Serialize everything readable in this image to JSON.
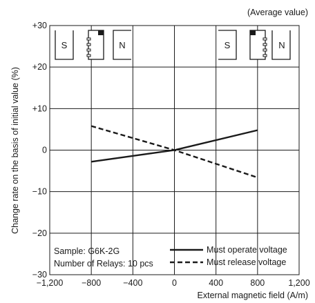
{
  "chart_data": {
    "type": "line",
    "title": "",
    "note_top": "(Average value)",
    "xlabel": "External magnetic field (A/m)",
    "ylabel": "Change rate on the basis of initial value (%)",
    "xlim": [
      -1200,
      1200
    ],
    "ylim": [
      -30,
      30
    ],
    "x_ticks": [
      -1200,
      -800,
      -400,
      0,
      400,
      800,
      1200
    ],
    "x_tick_labels": [
      "−1,200",
      "−800",
      "−400",
      "0",
      "400",
      "800",
      "1,200"
    ],
    "y_ticks": [
      -30,
      -20,
      -10,
      0,
      10,
      20,
      30
    ],
    "y_tick_labels": [
      "−30",
      "−20",
      "−10",
      "0",
      "+10",
      "+20",
      "+30"
    ],
    "grid": true,
    "legend_position": "bottom-right",
    "series": [
      {
        "name": "Must operate voltage",
        "style": "solid",
        "x": [
          -800,
          0,
          800
        ],
        "y": [
          -2.8,
          0,
          4.8
        ]
      },
      {
        "name": "Must release voltage",
        "style": "dashed",
        "x": [
          -800,
          0,
          800
        ],
        "y": [
          5.8,
          0,
          -6.6
        ]
      }
    ],
    "annotations": {
      "sample": "Sample: G6K-2G",
      "relays": "Number of Relays: 10 pcs"
    },
    "diagram_labels": {
      "left_magnet_s": "S",
      "left_magnet_n": "N",
      "right_magnet_s": "S",
      "right_magnet_n": "N"
    }
  },
  "colors": {
    "line": "#1a1a1a",
    "grid": "#1a1a1a",
    "background": "#ffffff"
  }
}
